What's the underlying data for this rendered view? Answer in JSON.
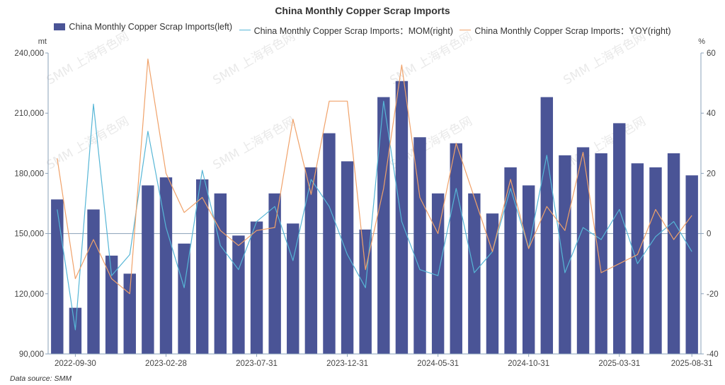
{
  "chart_data": {
    "type": "bar+line",
    "title": "China Monthly Copper Scrap Imports",
    "left_unit": "mt",
    "right_unit": "%",
    "left_ylim": [
      90000,
      240000
    ],
    "right_ylim": [
      -40,
      60
    ],
    "left_ticks": [
      "90,000",
      "120,000",
      "150,000",
      "180,000",
      "210,000",
      "240,000"
    ],
    "left_tick_values": [
      90000,
      120000,
      150000,
      180000,
      210000,
      240000
    ],
    "right_ticks": [
      "-40",
      "-20",
      "0",
      "20",
      "40",
      "60"
    ],
    "right_tick_values": [
      -40,
      -20,
      0,
      20,
      40,
      60
    ],
    "x_tick_labels": [
      "2022-09-30",
      "2023-02-28",
      "2023-07-31",
      "2023-12-31",
      "2024-05-31",
      "2024-10-31",
      "2025-03-31",
      "2025-08-31"
    ],
    "x_tick_indices": [
      1,
      6,
      11,
      16,
      21,
      26,
      31,
      35
    ],
    "series": [
      {
        "name": "China Monthly Copper Scrap Imports(left)",
        "kind": "bar",
        "color": "#4a5496",
        "values": [
          167000,
          113000,
          162000,
          139000,
          130000,
          174000,
          178000,
          145000,
          177000,
          170000,
          149000,
          156000,
          170000,
          155000,
          183000,
          200000,
          186000,
          152000,
          218000,
          226000,
          198000,
          170000,
          195000,
          170000,
          160000,
          183000,
          174000,
          218000,
          189000,
          193000,
          190000,
          205000,
          185000,
          183000,
          190000,
          179000
        ]
      },
      {
        "name": "China Monthly Copper Scrap Imports：MOM(right)",
        "kind": "line",
        "color": "#56b6d6",
        "values": [
          8,
          -32,
          43,
          -14,
          -7,
          34,
          2,
          -18,
          21,
          -4,
          -12,
          4,
          9,
          -9,
          18,
          9,
          -7,
          -18,
          44,
          4,
          -12,
          -14,
          15,
          -13,
          -6,
          15,
          -5,
          26,
          -13,
          2,
          -2,
          8,
          -10,
          -1,
          4,
          -6
        ]
      },
      {
        "name": "China Monthly Copper Scrap Imports：YOY(right)",
        "kind": "line",
        "color": "#f0a26a",
        "values": [
          25,
          -15,
          -2,
          -15,
          -20,
          58,
          20,
          7,
          12,
          1,
          -4,
          1,
          2,
          38,
          13,
          44,
          44,
          -12,
          15,
          56,
          12,
          0,
          30,
          12,
          -6,
          18,
          -5,
          9,
          1,
          27,
          -13,
          -10,
          -7,
          8,
          -2,
          6
        ]
      }
    ],
    "watermark": "SMM 上海有色网"
  },
  "source_label": "Data source:  SMM"
}
